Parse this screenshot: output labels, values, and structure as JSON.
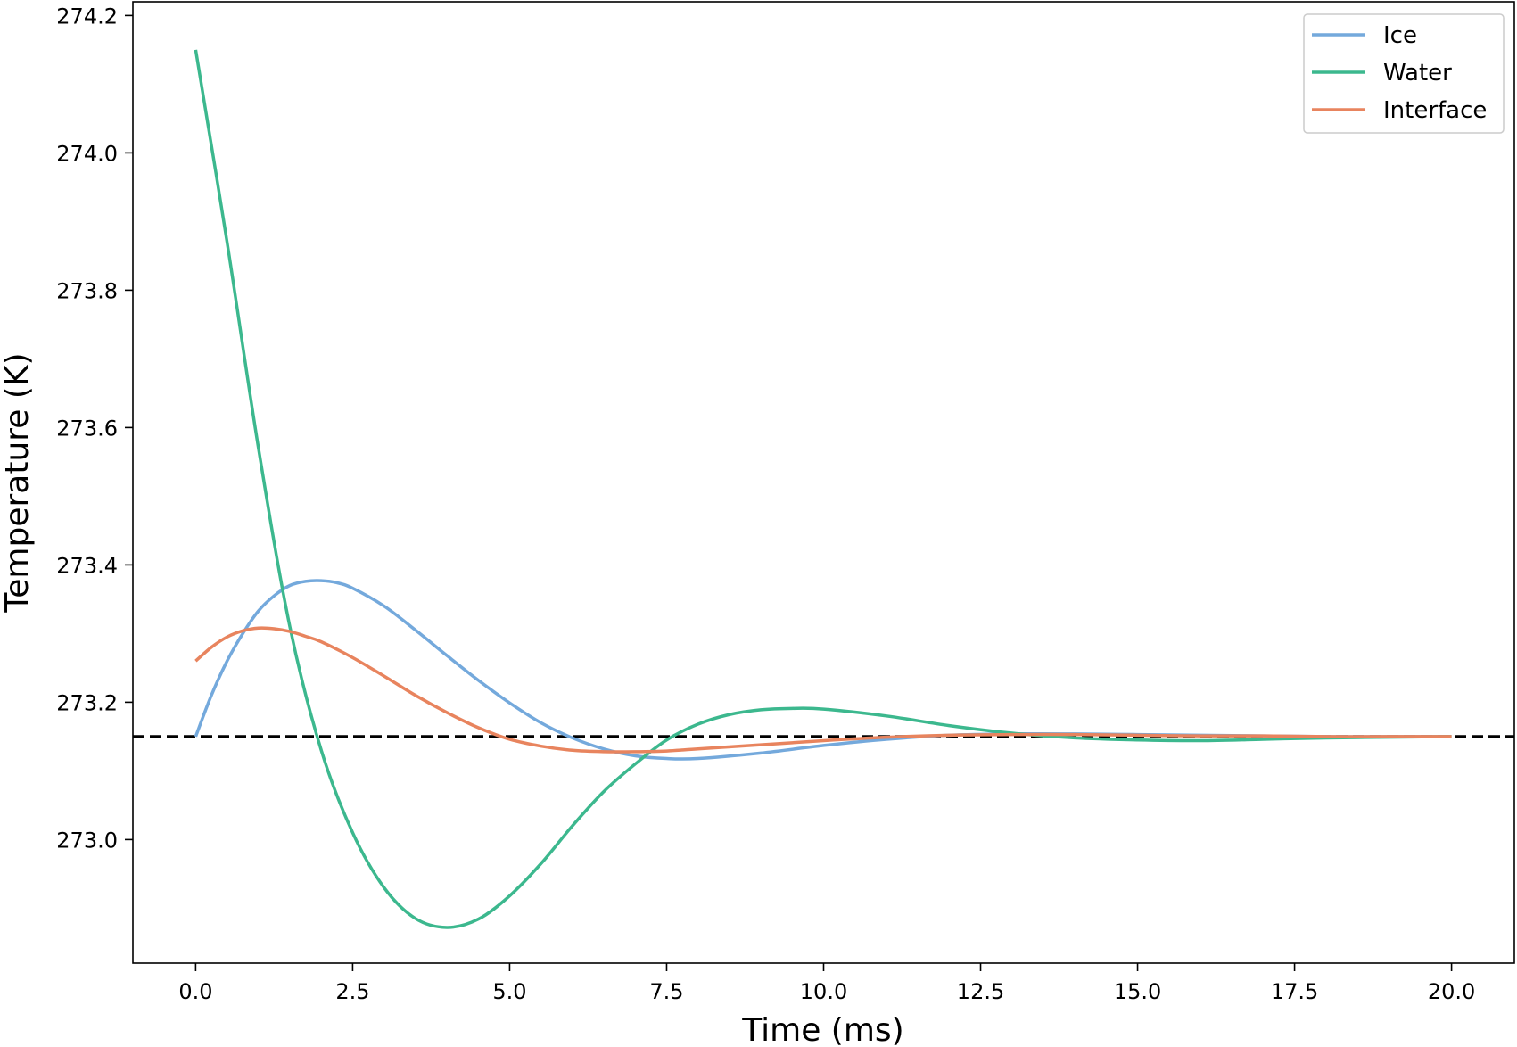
{
  "chart_data": {
    "type": "line",
    "title": "",
    "xlabel": "Time (ms)",
    "ylabel": "Temperature (K)",
    "xlim": [
      -1.0,
      21.0
    ],
    "ylim": [
      272.82,
      274.22
    ],
    "xticks": [
      0.0,
      2.5,
      5.0,
      7.5,
      10.0,
      12.5,
      15.0,
      17.5,
      20.0
    ],
    "xtick_labels": [
      "0.0",
      "2.5",
      "5.0",
      "7.5",
      "10.0",
      "12.5",
      "15.0",
      "17.5",
      "20.0"
    ],
    "yticks": [
      273.0,
      273.2,
      273.4,
      273.6,
      273.8,
      274.0,
      274.2
    ],
    "ytick_labels": [
      "273.0",
      "273.2",
      "273.4",
      "273.6",
      "273.8",
      "274.0",
      "274.2"
    ],
    "grid": false,
    "legend_position": "top-right",
    "reference_line": {
      "y": 273.15,
      "style": "dashed",
      "color": "#000000"
    },
    "series": [
      {
        "name": "Ice",
        "color": "#74a9dc",
        "x": [
          0,
          0.25,
          0.5,
          0.75,
          1.0,
          1.25,
          1.5,
          1.75,
          2.0,
          2.25,
          2.5,
          3.0,
          3.5,
          4.0,
          4.5,
          5.0,
          5.5,
          6.0,
          6.5,
          7.0,
          7.5,
          8.0,
          9.0,
          10.0,
          11.0,
          12.0,
          13.0,
          14.0,
          15.0,
          16.0,
          17.0,
          18.0,
          19.0,
          20.0
        ],
        "y": [
          273.15,
          273.21,
          273.26,
          273.3,
          273.333,
          273.355,
          273.37,
          273.376,
          273.377,
          273.374,
          273.366,
          273.34,
          273.305,
          273.268,
          273.232,
          273.199,
          273.17,
          273.148,
          273.132,
          273.122,
          273.118,
          273.118,
          273.126,
          273.137,
          273.146,
          273.152,
          273.154,
          273.154,
          273.153,
          273.152,
          273.151,
          273.15,
          273.15,
          273.15
        ]
      },
      {
        "name": "Water",
        "color": "#3cb88e",
        "x": [
          0,
          0.5,
          1.0,
          1.5,
          2.0,
          2.5,
          3.0,
          3.5,
          4.0,
          4.5,
          5.0,
          5.5,
          6.0,
          6.5,
          7.0,
          7.5,
          8.0,
          8.5,
          9.0,
          9.5,
          10.0,
          11.0,
          12.0,
          13.0,
          14.0,
          15.0,
          16.0,
          17.0,
          18.0,
          19.0,
          20.0
        ],
        "y": [
          274.15,
          273.87,
          273.57,
          273.31,
          273.13,
          273.01,
          272.93,
          272.885,
          272.872,
          272.884,
          272.918,
          272.965,
          273.02,
          273.07,
          273.11,
          273.145,
          273.168,
          273.182,
          273.189,
          273.191,
          273.19,
          273.18,
          273.166,
          273.155,
          273.148,
          273.145,
          273.144,
          273.146,
          273.148,
          273.149,
          273.15
        ]
      },
      {
        "name": "Interface",
        "color": "#e8845e",
        "x": [
          0,
          0.25,
          0.5,
          0.75,
          1.0,
          1.25,
          1.5,
          1.75,
          2.0,
          2.5,
          3.0,
          3.5,
          4.0,
          4.5,
          5.0,
          5.5,
          6.0,
          6.5,
          7.0,
          7.5,
          8.0,
          9.0,
          10.0,
          11.0,
          12.0,
          13.0,
          14.0,
          15.0,
          16.0,
          17.0,
          18.0,
          19.0,
          20.0
        ],
        "y": [
          273.26,
          273.28,
          273.295,
          273.304,
          273.308,
          273.307,
          273.303,
          273.296,
          273.288,
          273.265,
          273.238,
          273.21,
          273.185,
          273.163,
          273.146,
          273.136,
          273.13,
          273.128,
          273.128,
          273.129,
          273.132,
          273.138,
          273.144,
          273.149,
          273.152,
          273.153,
          273.153,
          273.152,
          273.151,
          273.151,
          273.15,
          273.15,
          273.15
        ]
      }
    ]
  }
}
